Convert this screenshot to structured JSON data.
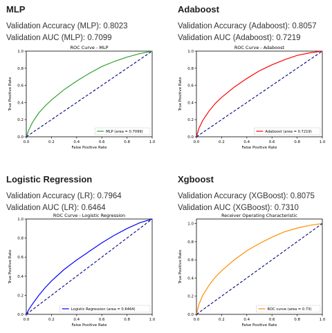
{
  "panels": [
    {
      "heading": "MLP",
      "accuracy_text": "Validation Accuracy (MLP): 0.8023",
      "auc_text": "Validation AUC (MLP): 0.7099"
    },
    {
      "heading": "Adaboost",
      "accuracy_text": "Validation Accuracy (Adaboost): 0.8057",
      "auc_text": "Validation AUC (Adaboost): 0.7219"
    },
    {
      "heading": "Logistic Regression",
      "accuracy_text": "Validation Accuracy (LR): 0.7964",
      "auc_text": "Validation AUC (LR): 0.6464"
    },
    {
      "heading": "Xgboost",
      "accuracy_text": "Validation Accuracy (XGBoost): 0.8075",
      "auc_text": "Validation AUC (XGBoost): 0.7310"
    }
  ],
  "chart_data": [
    {
      "type": "line",
      "title": "ROC Curve - MLP",
      "xlabel": "False Positive Rate",
      "ylabel": "True Positive Rate",
      "xlim": [
        0,
        1
      ],
      "ylim": [
        0,
        1
      ],
      "xticks": [
        "0.0",
        "0.2",
        "0.4",
        "0.6",
        "0.8",
        "1.0"
      ],
      "yticks": [
        "0.0",
        "0.2",
        "0.4",
        "0.6",
        "0.8",
        "1.0"
      ],
      "legend_position": "lower right",
      "series": [
        {
          "name": "MLP (area = 0.7099)",
          "color": "#2ca02c",
          "x": [
            0,
            0.02,
            0.05,
            0.1,
            0.15,
            0.2,
            0.3,
            0.4,
            0.5,
            0.6,
            0.7,
            0.8,
            0.9,
            1.0
          ],
          "y": [
            0,
            0.08,
            0.17,
            0.28,
            0.36,
            0.43,
            0.55,
            0.65,
            0.74,
            0.82,
            0.88,
            0.93,
            0.97,
            1.0
          ]
        },
        {
          "name": "",
          "color": "#000080",
          "dashed": true,
          "x": [
            0,
            1
          ],
          "y": [
            0,
            1
          ]
        }
      ]
    },
    {
      "type": "line",
      "title": "ROC Curve - Adaboost",
      "xlabel": "False Positive Rate",
      "ylabel": "True Positive Rate",
      "xlim": [
        0,
        1
      ],
      "ylim": [
        0,
        1
      ],
      "xticks": [
        "0.0",
        "0.2",
        "0.4",
        "0.6",
        "0.8",
        "1.0"
      ],
      "yticks": [
        "0.0",
        "0.2",
        "0.4",
        "0.6",
        "0.8",
        "1.0"
      ],
      "legend_position": "lower right",
      "series": [
        {
          "name": "Adaboost (area = 0.7219)",
          "color": "#ff0000",
          "x": [
            0,
            0.02,
            0.05,
            0.1,
            0.15,
            0.2,
            0.3,
            0.4,
            0.5,
            0.6,
            0.7,
            0.8,
            0.9,
            1.0
          ],
          "y": [
            0,
            0.1,
            0.19,
            0.3,
            0.39,
            0.46,
            0.58,
            0.68,
            0.77,
            0.84,
            0.9,
            0.95,
            0.98,
            1.0
          ]
        },
        {
          "name": "",
          "color": "#000080",
          "dashed": true,
          "x": [
            0,
            1
          ],
          "y": [
            0,
            1
          ]
        }
      ]
    },
    {
      "type": "line",
      "title": "ROC Curve - Logistic Regression",
      "xlabel": "False Positive Rate",
      "ylabel": "True Positive Rate",
      "xlim": [
        0,
        1
      ],
      "ylim": [
        0,
        1
      ],
      "xticks": [
        "0.0",
        "0.2",
        "0.4",
        "0.6",
        "0.8",
        "1.0"
      ],
      "yticks": [
        "0.0",
        "0.2",
        "0.4",
        "0.6",
        "0.8",
        "1.0"
      ],
      "legend_position": "lower right",
      "series": [
        {
          "name": "Logistic Regression (area = 0.6464)",
          "color": "#0000ff",
          "x": [
            0,
            0.02,
            0.05,
            0.1,
            0.15,
            0.2,
            0.3,
            0.4,
            0.5,
            0.6,
            0.7,
            0.8,
            0.9,
            1.0
          ],
          "y": [
            0,
            0.05,
            0.11,
            0.2,
            0.28,
            0.35,
            0.47,
            0.57,
            0.66,
            0.75,
            0.83,
            0.9,
            0.96,
            1.0
          ]
        },
        {
          "name": "",
          "color": "#000080",
          "dashed": true,
          "x": [
            0,
            1
          ],
          "y": [
            0,
            1
          ]
        }
      ]
    },
    {
      "type": "line",
      "title": "Receiver Operating Characteristic",
      "xlabel": "False Positive Rate",
      "ylabel": "True Positive Rate",
      "xlim": [
        0,
        1
      ],
      "ylim": [
        0,
        1.05
      ],
      "xticks": [
        "0.0",
        "0.2",
        "0.4",
        "0.6",
        "0.8",
        "1.0"
      ],
      "yticks": [
        "0.0",
        "0.2",
        "0.4",
        "0.6",
        "0.8",
        "1.0"
      ],
      "legend_position": "lower right",
      "series": [
        {
          "name": "ROC curve (area = 0.73)",
          "color": "#ff8c00",
          "x": [
            0,
            0.02,
            0.05,
            0.1,
            0.15,
            0.2,
            0.3,
            0.4,
            0.5,
            0.6,
            0.7,
            0.8,
            0.9,
            1.0
          ],
          "y": [
            0,
            0.11,
            0.21,
            0.32,
            0.41,
            0.48,
            0.6,
            0.7,
            0.78,
            0.85,
            0.91,
            0.95,
            0.98,
            1.0
          ]
        },
        {
          "name": "",
          "color": "#000080",
          "dashed": true,
          "x": [
            0,
            1
          ],
          "y": [
            0,
            1
          ]
        }
      ]
    }
  ]
}
